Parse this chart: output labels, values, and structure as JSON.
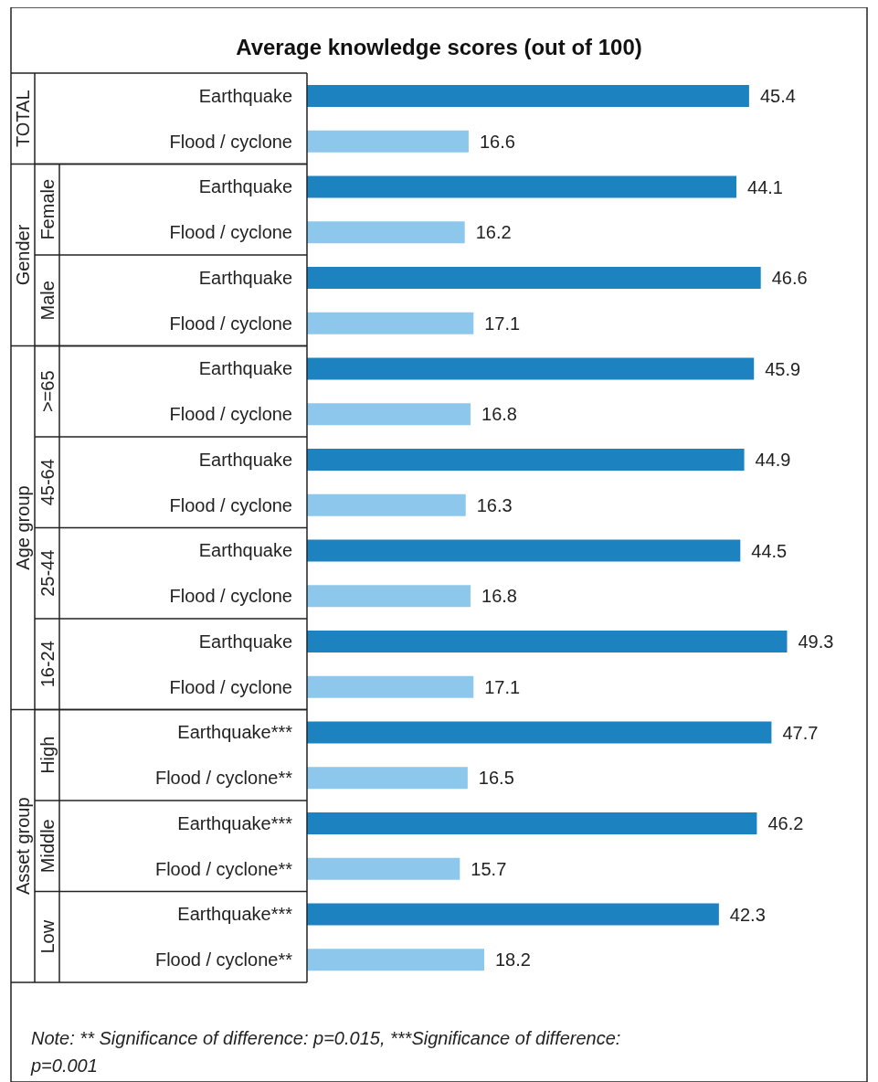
{
  "chart_data": {
    "type": "bar",
    "orientation": "horizontal",
    "title": "Average knowledge scores (out of 100)",
    "categories": [
      "Earthquake",
      "Flood / cyclone",
      "Earthquake",
      "Flood / cyclone",
      "Earthquake",
      "Flood / cyclone",
      "Earthquake",
      "Flood / cyclone",
      "Earthquake",
      "Flood / cyclone",
      "Earthquake",
      "Flood / cyclone",
      "Earthquake",
      "Flood / cyclone",
      "Earthquake***",
      "Flood / cyclone**",
      "Earthquake***",
      "Flood / cyclone**",
      "Earthquake***",
      "Flood / cyclone**"
    ],
    "values": [
      45.4,
      16.6,
      44.1,
      16.2,
      46.6,
      17.1,
      45.9,
      16.8,
      44.9,
      16.3,
      44.5,
      16.8,
      49.3,
      17.1,
      47.7,
      16.5,
      46.2,
      15.7,
      42.3,
      18.2
    ],
    "colors": [
      "#1c83c0",
      "#8dc8ec",
      "#1c83c0",
      "#8dc8ec",
      "#1c83c0",
      "#8dc8ec",
      "#1c83c0",
      "#8dc8ec",
      "#1c83c0",
      "#8dc8ec",
      "#1c83c0",
      "#8dc8ec",
      "#1c83c0",
      "#8dc8ec",
      "#1c83c0",
      "#8dc8ec",
      "#1c83c0",
      "#8dc8ec",
      "#1c83c0",
      "#8dc8ec"
    ],
    "data_labels": true,
    "annotations": [
      "TOTAL",
      "Gender",
      "Female",
      "Male",
      "Age group",
      ">=65",
      "45-64",
      "25-44",
      "16-24",
      "Asset group",
      "High",
      "Middle",
      "Low",
      "Note: ** Significance of difference: p=0.015, ***Significance of difference: p=0.001"
    ]
  }
}
